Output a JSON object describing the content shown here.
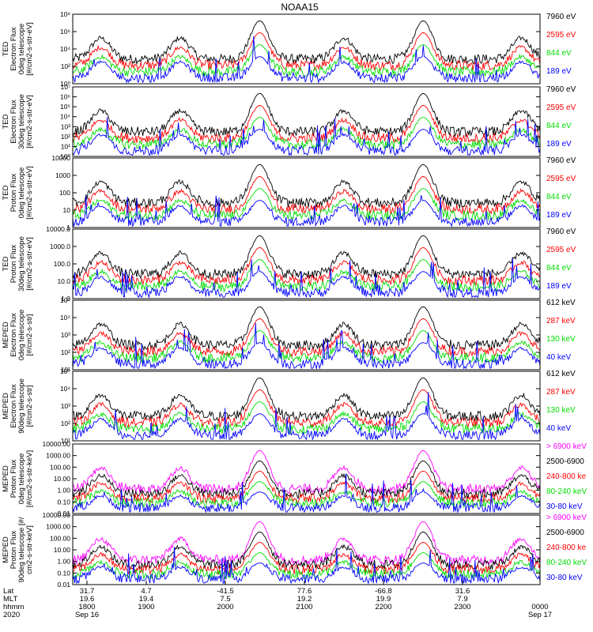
{
  "title": "NOAA15",
  "colors": {
    "blue": "#0000ff",
    "red": "#ff0000",
    "green": "#00dd00",
    "black": "#000000",
    "magenta": "#ff00ff"
  },
  "chart_data": {
    "type": "line",
    "title": "NOAA15",
    "x_axis": {
      "rows": [
        {
          "label": "Lat",
          "values": [
            "31.7",
            "4.7",
            "-41.5",
            "77.6",
            "-66.8",
            "31.6",
            ""
          ]
        },
        {
          "label": "MLT",
          "values": [
            "19.6",
            "19.4",
            "7.5",
            "19.2",
            "19.9",
            "7.9",
            ""
          ]
        },
        {
          "label": "hhmm",
          "values": [
            "1800",
            "1900",
            "2000",
            "2100",
            "2200",
            "2300",
            "0000"
          ]
        },
        {
          "label": "2020",
          "values": [
            "Sep 16",
            "",
            "",
            "",
            "",
            "",
            "Sep 17"
          ]
        }
      ],
      "range": [
        "1800",
        "0000"
      ]
    },
    "panels": [
      {
        "ylabel": [
          "TED",
          "Electron Flux",
          "0deg telescope",
          "[#/cm2-s-str-eV]"
        ],
        "y_ticks": [
          "10⁰",
          "10²",
          "10⁴",
          "10⁶",
          "10⁸"
        ],
        "log": true,
        "series": [
          {
            "name": "7960 eV",
            "color": "black",
            "legend_color": "#000000"
          },
          {
            "name": "2595 eV",
            "color": "red",
            "legend_color": "#ff0000"
          },
          {
            "name": "844 eV",
            "color": "green",
            "legend_color": "#00dd00"
          },
          {
            "name": "189 eV",
            "color": "blue",
            "legend_color": "#0000ff"
          }
        ]
      },
      {
        "ylabel": [
          "TED",
          "Electron Flux",
          "30deg telescope",
          "[#/cm2-s-str-eV]"
        ],
        "y_ticks": [
          "10⁰",
          "10¹",
          "10²",
          "10³",
          "10⁴",
          "10⁵",
          "10⁶",
          "10⁷"
        ],
        "log": true,
        "series": [
          {
            "name": "7960 eV",
            "color": "black",
            "legend_color": "#000000"
          },
          {
            "name": "2595 eV",
            "color": "red",
            "legend_color": "#ff0000"
          },
          {
            "name": "844 eV",
            "color": "green",
            "legend_color": "#00dd00"
          },
          {
            "name": "189 eV",
            "color": "blue",
            "legend_color": "#0000ff"
          }
        ]
      },
      {
        "ylabel": [
          "TED",
          "Proton Flux",
          "0deg telescope",
          "[#/cm2-s-str-eV]"
        ],
        "y_ticks": [
          "1",
          "10",
          "100",
          "1000",
          "10000"
        ],
        "log": true,
        "series": [
          {
            "name": "7960 eV",
            "color": "black",
            "legend_color": "#000000"
          },
          {
            "name": "2595 eV",
            "color": "red",
            "legend_color": "#ff0000"
          },
          {
            "name": "844 eV",
            "color": "green",
            "legend_color": "#00dd00"
          },
          {
            "name": "189 eV",
            "color": "blue",
            "legend_color": "#0000ff"
          }
        ]
      },
      {
        "ylabel": [
          "TED",
          "Proton Flux",
          "30deg telescope",
          "[#/cm2-s-str-eV]"
        ],
        "y_ticks": [
          "1.0",
          "10.0",
          "100.0",
          "1000.0",
          "10000.0"
        ],
        "log": true,
        "series": [
          {
            "name": "7960 eV",
            "color": "black",
            "legend_color": "#000000"
          },
          {
            "name": "2595 eV",
            "color": "red",
            "legend_color": "#ff0000"
          },
          {
            "name": "844 eV",
            "color": "green",
            "legend_color": "#00dd00"
          },
          {
            "name": "189 eV",
            "color": "blue",
            "legend_color": "#0000ff"
          }
        ]
      },
      {
        "ylabel": [
          "MEPED",
          "Electron Flux",
          "0deg telescope",
          "[#/cm2-s-str]"
        ],
        "y_ticks": [
          "10¹",
          "10²",
          "10³",
          "10⁴",
          "10⁵"
        ],
        "log": true,
        "series": [
          {
            "name": "612 keV",
            "color": "black",
            "legend_color": "#000000"
          },
          {
            "name": "287 keV",
            "color": "red",
            "legend_color": "#ff0000"
          },
          {
            "name": "130 keV",
            "color": "green",
            "legend_color": "#00dd00"
          },
          {
            "name": "40 keV",
            "color": "blue",
            "legend_color": "#0000ff"
          }
        ]
      },
      {
        "ylabel": [
          "MEPED",
          "Electron Flux",
          "90deg telescope",
          "[#/cm2-s-str]"
        ],
        "y_ticks": [
          "10¹",
          "10²",
          "10³",
          "10⁴",
          "10⁵"
        ],
        "log": true,
        "series": [
          {
            "name": "612 keV",
            "color": "black",
            "legend_color": "#000000"
          },
          {
            "name": "287 keV",
            "color": "red",
            "legend_color": "#ff0000"
          },
          {
            "name": "130 keV",
            "color": "green",
            "legend_color": "#00dd00"
          },
          {
            "name": "40 keV",
            "color": "blue",
            "legend_color": "#0000ff"
          }
        ]
      },
      {
        "ylabel": [
          "MEPED",
          "Proton Flux",
          "0deg telescope",
          "[#/cm2-s-str-keV]"
        ],
        "y_ticks": [
          "0.01",
          "0.10",
          "1.00",
          "10.00",
          "100.00",
          "1000.00",
          "10000.00"
        ],
        "log": true,
        "series": [
          {
            "name": "> 6900 keV",
            "color": "magenta",
            "legend_color": "#ff00ff"
          },
          {
            "name": "2500-6900",
            "color": "black",
            "legend_color": "#000000"
          },
          {
            "name": "240-800 ke",
            "color": "red",
            "legend_color": "#ff0000"
          },
          {
            "name": "80-240 keV",
            "color": "green",
            "legend_color": "#00dd00"
          },
          {
            "name": "30-80 keV",
            "color": "blue",
            "legend_color": "#0000ff"
          }
        ]
      },
      {
        "ylabel": [
          "MEPED",
          "Proton Flux",
          "90deg telescope [#/",
          "cm2-s-str-keV]"
        ],
        "y_ticks": [
          "0.01",
          "0.10",
          "1.00",
          "10.00",
          "100.00",
          "1000.00",
          "10000.00"
        ],
        "log": true,
        "series": [
          {
            "name": "> 6900 keV",
            "color": "magenta",
            "legend_color": "#ff00ff"
          },
          {
            "name": "2500-6900",
            "color": "black",
            "legend_color": "#000000"
          },
          {
            "name": "240-800 ke",
            "color": "red",
            "legend_color": "#ff0000"
          },
          {
            "name": "80-240 keV",
            "color": "green",
            "legend_color": "#00dd00"
          },
          {
            "name": "30-80 keV",
            "color": "blue",
            "legend_color": "#0000ff"
          }
        ]
      }
    ]
  }
}
